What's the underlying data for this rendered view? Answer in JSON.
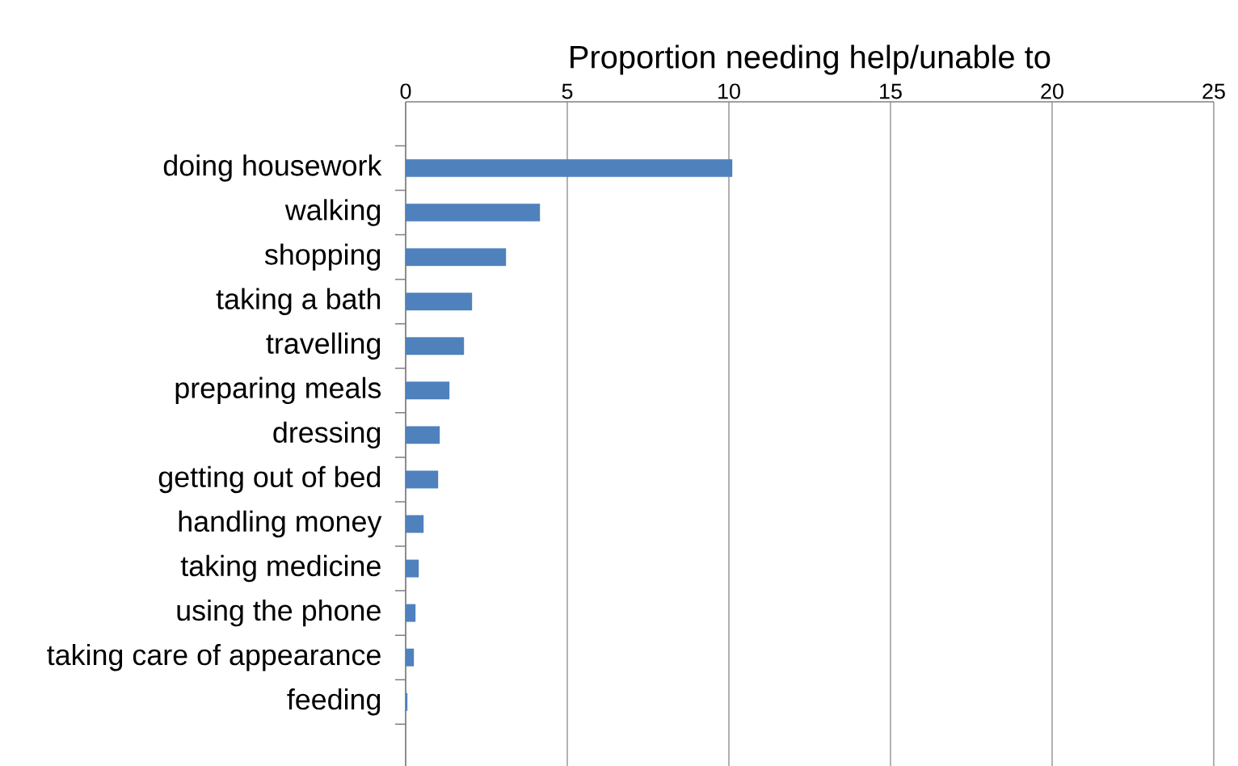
{
  "chart_data": {
    "type": "bar",
    "orientation": "horizontal",
    "xlabel": "Proportion needing help/unable to",
    "categories": [
      "doing housework",
      "walking",
      "shopping",
      "taking a bath",
      "travelling",
      "preparing meals",
      "dressing",
      "getting out of bed",
      "handling money",
      "taking medicine",
      "using the phone",
      "taking care of appearance",
      "feeding"
    ],
    "values": [
      10.1,
      4.15,
      3.1,
      2.05,
      1.8,
      1.35,
      1.05,
      1.0,
      0.55,
      0.4,
      0.3,
      0.25,
      0.05
    ],
    "color": "#4f81bd",
    "xlim": [
      0,
      25
    ],
    "xticks": [
      0,
      5,
      10,
      15,
      20,
      25
    ],
    "grid": "x"
  }
}
